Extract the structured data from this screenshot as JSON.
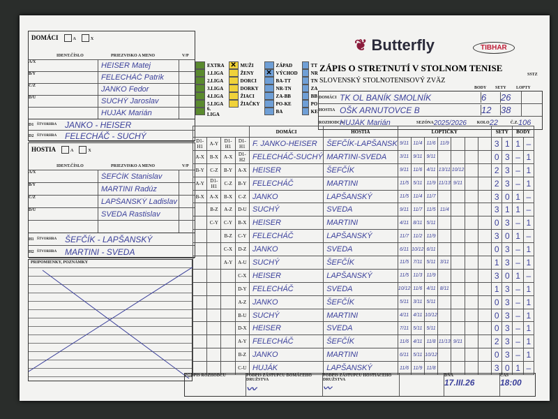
{
  "brand": {
    "logo": "Butterfly",
    "logo2": "TIBHAR",
    "color": "#8b1c3c"
  },
  "form": {
    "title": "ZÁPIS O STRETNUTÍ V STOLNOM TENISE",
    "association": "SLOVENSKÝ STOLNOTENISOVÝ ZVÄZ",
    "assoc_logo": "SSTZ",
    "col_body": "BODY",
    "col_sety": "SETY",
    "col_lopty": "LOPTY",
    "lbl_domaci": "DOMÁCI",
    "lbl_hostia": "HOSTIA",
    "lbl_rozhodca": "ROZHODCA",
    "lbl_sezona": "SEZÓNA",
    "lbl_kolo": "KOLO",
    "lbl_cz": "Č.Z.",
    "home_team": "TK OL BANÍK SMOLNÍK",
    "home_body": "6",
    "home_sety": "26",
    "guest_team": "OŠK ARNUTOVCE B",
    "guest_body": "12",
    "guest_sety": "38",
    "referee": "HUJÁK Marián",
    "season": "2025/2026",
    "round": "22",
    "cz": "106"
  },
  "home": {
    "title": "DOMÁCI",
    "a": "A",
    "x": "X",
    "col_id": "IDENT.ČÍSLO",
    "col_name": "PRIEZVISKO A MENO",
    "col_vp": "V/P",
    "players": [
      {
        "code": "A/X",
        "name": "HEISER Matej"
      },
      {
        "code": "B/Y",
        "name": "FELECHÁČ Patrik"
      },
      {
        "code": "C/Z",
        "name": "JANKO Fedor"
      },
      {
        "code": "D/U",
        "name": "SUCHÝ Jaroslav"
      },
      {
        "code": "",
        "name": "HUJÁK Marián"
      }
    ],
    "doubles_label": "ŠTVORHRA",
    "doubles": [
      {
        "code": "D1",
        "pair": "JANKO - HEISER"
      },
      {
        "code": "D2",
        "pair": "FELECHÁČ - SUCHÝ"
      }
    ]
  },
  "guest": {
    "title": "HOSTIA",
    "a": "A",
    "x": "X",
    "col_id": "IDENT.ČÍSLO",
    "col_name": "PRIEZVISKO A MENO",
    "col_vp": "V/P",
    "players": [
      {
        "code": "A/X",
        "name": "ŠEFČÍK Stanislav"
      },
      {
        "code": "B/Y",
        "name": "MARTINI Radúz"
      },
      {
        "code": "C/Z",
        "name": "LAPŠANSKÝ Ladislav"
      },
      {
        "code": "D/U",
        "name": "SVEDA Rastislav"
      },
      {
        "code": "",
        "name": ""
      }
    ],
    "doubles_label": "ŠTVORHRA",
    "doubles": [
      {
        "code": "H1",
        "pair": "ŠEFČÍK - LAPŠANSKÝ"
      },
      {
        "code": "H2",
        "pair": "MARTINI - SVEDA"
      }
    ]
  },
  "notes_label": "PRIPOMIENKY, POZNÁMKY",
  "leagues": {
    "levels": [
      "EXTRA",
      "1.LIGA",
      "2.LIGA",
      "3.LIGA",
      "4.LIGA",
      "5.LIGA",
      "6. LIGA"
    ],
    "categories": [
      "MUŽI",
      "ŽENY",
      "DORCI",
      "DORKY",
      "ŽIACI",
      "ŽIAČKY"
    ],
    "regions": [
      "ZÁPAD",
      "VÝCHOD",
      "BA-TT",
      "NR-TN",
      "ZA-BB",
      "PO-KE",
      "BA"
    ],
    "codes": [
      "TT",
      "NR",
      "TN",
      "ZA",
      "BB",
      "PO",
      "KE"
    ],
    "checked_category": "MUŽI",
    "checked_region": "VÝCHOD",
    "color_levels": "#5a8a2e",
    "color_categories": "#f0d23a",
    "color_regions": "#6f9fd6"
  },
  "matches": {
    "col_home": "DOMÁCI",
    "col_guest": "HOSTIA",
    "col_balls": "LOPTIČKY",
    "col_sets": "SETY",
    "col_points": "BODY",
    "rows": [
      {
        "sys": [
          "D1-H1",
          "A-Y",
          "D1-H1",
          "D1-H1"
        ],
        "home": "F. JANKO-HEISER",
        "guest": "ŠEFČÍK-LAPŠANSKÝ",
        "balls": [
          "9/11",
          "11/4",
          "11/6",
          "11/9"
        ],
        "sets": [
          "3",
          "1"
        ],
        "points": [
          "1",
          "–"
        ]
      },
      {
        "sys": [
          "A-X",
          "B-X",
          "A-X",
          "D1-H2"
        ],
        "home": "FELECHÁČ-SUCHÝ",
        "guest": "MARTINI-SVEDA",
        "balls": [
          "3/11",
          "9/11",
          "9/11"
        ],
        "sets": [
          "0",
          "3"
        ],
        "points": [
          "–",
          "1"
        ]
      },
      {
        "sys": [
          "B-Y",
          "C-Z",
          "B-Y",
          "A-X"
        ],
        "home": "HEISER",
        "guest": "ŠEFČÍK",
        "balls": [
          "9/11",
          "11/6",
          "4/11",
          "13/11",
          "10/12"
        ],
        "sets": [
          "2",
          "3"
        ],
        "points": [
          "–",
          "1"
        ]
      },
      {
        "sys": [
          "A-Y",
          "D1-H1",
          "C-Z",
          "B-Y"
        ],
        "home": "FELECHÁČ",
        "guest": "MARTINI",
        "balls": [
          "11/5",
          "5/11",
          "11/9",
          "11/13",
          "9/11"
        ],
        "sets": [
          "2",
          "3"
        ],
        "points": [
          "–",
          "1"
        ]
      },
      {
        "sys": [
          "B-X",
          "A-X",
          "B-X",
          "C-Z"
        ],
        "home": "JANKO",
        "guest": "LAPŠANSKÝ",
        "balls": [
          "11/5",
          "11/4",
          "11/7"
        ],
        "sets": [
          "3",
          "0"
        ],
        "points": [
          "1",
          "–"
        ]
      },
      {
        "sys": [
          "",
          "B-Z",
          "A-Z",
          "D-U"
        ],
        "home": "SUCHÝ",
        "guest": "SVEDA",
        "balls": [
          "9/11",
          "11/7",
          "11/5",
          "11/4"
        ],
        "sets": [
          "3",
          "1"
        ],
        "points": [
          "1",
          "–"
        ]
      },
      {
        "sys": [
          "",
          "C-Y",
          "C-Y",
          "B-X"
        ],
        "home": "HEISER",
        "guest": "MARTINI",
        "balls": [
          "4/11",
          "8/11",
          "5/11"
        ],
        "sets": [
          "0",
          "3"
        ],
        "points": [
          "–",
          "1"
        ]
      },
      {
        "sys": [
          "",
          "",
          "B-Z",
          "C-Y"
        ],
        "home": "FELECHÁČ",
        "guest": "LAPŠANSKÝ",
        "balls": [
          "11/7",
          "11/2",
          "11/9"
        ],
        "sets": [
          "3",
          "0"
        ],
        "points": [
          "1",
          "–"
        ]
      },
      {
        "sys": [
          "",
          "",
          "C-X",
          "D-Z"
        ],
        "home": "JANKO",
        "guest": "SVEDA",
        "balls": [
          "6/11",
          "10/12",
          "6/11"
        ],
        "sets": [
          "0",
          "3"
        ],
        "points": [
          "–",
          "1"
        ]
      },
      {
        "sys": [
          "",
          "",
          "A-Y",
          "A-U"
        ],
        "home": "SUCHÝ",
        "guest": "ŠEFČÍK",
        "balls": [
          "11/5",
          "7/11",
          "5/11",
          "3/11"
        ],
        "sets": [
          "1",
          "3"
        ],
        "points": [
          "–",
          "1"
        ]
      },
      {
        "sys": [
          "",
          "",
          "",
          "C-X"
        ],
        "home": "HEISER",
        "guest": "LAPŠANSKÝ",
        "balls": [
          "11/5",
          "11/3",
          "11/9"
        ],
        "sets": [
          "3",
          "0"
        ],
        "points": [
          "1",
          "–"
        ]
      },
      {
        "sys": [
          "",
          "",
          "",
          "D-Y"
        ],
        "home": "FELECHÁČ",
        "guest": "SVEDA",
        "balls": [
          "10/12",
          "11/6",
          "4/11",
          "8/11"
        ],
        "sets": [
          "1",
          "3"
        ],
        "points": [
          "–",
          "1"
        ]
      },
      {
        "sys": [
          "",
          "",
          "",
          "A-Z"
        ],
        "home": "JANKO",
        "guest": "ŠEFČÍK",
        "balls": [
          "5/11",
          "3/11",
          "5/11"
        ],
        "sets": [
          "0",
          "3"
        ],
        "points": [
          "–",
          "1"
        ]
      },
      {
        "sys": [
          "",
          "",
          "",
          "B-U"
        ],
        "home": "SUCHÝ",
        "guest": "MARTINI",
        "balls": [
          "4/11",
          "4/11",
          "10/12"
        ],
        "sets": [
          "0",
          "3"
        ],
        "points": [
          "–",
          "1"
        ]
      },
      {
        "sys": [
          "",
          "",
          "",
          "D-X"
        ],
        "home": "HEISER",
        "guest": "SVEDA",
        "balls": [
          "7/11",
          "5/11",
          "5/11"
        ],
        "sets": [
          "0",
          "3"
        ],
        "points": [
          "–",
          "1"
        ]
      },
      {
        "sys": [
          "",
          "",
          "",
          "A-Y"
        ],
        "home": "FELECHÁČ",
        "guest": "ŠEFČÍK",
        "balls": [
          "11/6",
          "4/11",
          "11/8",
          "11/13",
          "9/11"
        ],
        "sets": [
          "2",
          "3"
        ],
        "points": [
          "–",
          "1"
        ]
      },
      {
        "sys": [
          "",
          "",
          "",
          "B-Z"
        ],
        "home": "JANKO",
        "guest": "MARTINI",
        "balls": [
          "6/11",
          "5/11",
          "10/12"
        ],
        "sets": [
          "0",
          "3"
        ],
        "points": [
          "–",
          "1"
        ]
      },
      {
        "sys": [
          "",
          "",
          "",
          "C-U"
        ],
        "home": "HUJÁK",
        "guest": "LAPŠANSKÝ",
        "balls": [
          "11/6",
          "11/9",
          "11/8"
        ],
        "sets": [
          "3",
          "0"
        ],
        "points": [
          "1",
          "–"
        ]
      }
    ]
  },
  "footer": {
    "sig_referee": "PODPIS ROZHODCU",
    "sig_home": "PODPIS ZÁSTUPCU DOMÁCEHO DRUŽSTVA",
    "sig_guest": "PODPIS ZÁSTUPCU HOSTIACEHO DRUŽSTVA",
    "lbl_date": "DŇA",
    "date": "17.III.26",
    "lbl_time": "ČAS",
    "time": "18:00"
  }
}
